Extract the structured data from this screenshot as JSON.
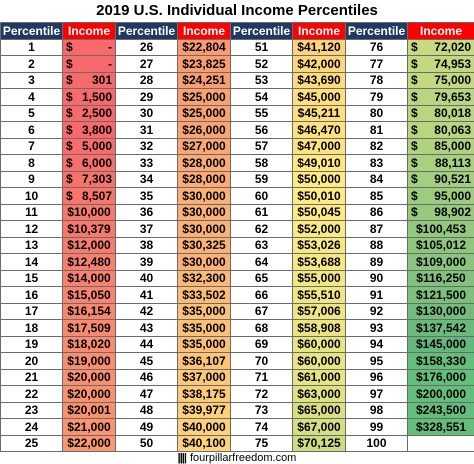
{
  "title": "2019 U.S. Individual Income Percentiles",
  "headers": {
    "percentile": "Percentile",
    "income": "Income"
  },
  "columns": [
    {
      "percentiles": [
        "1",
        "2",
        "3",
        "4",
        "5",
        "6",
        "7",
        "8",
        "9",
        "10",
        "11",
        "12",
        "13",
        "14",
        "15",
        "16",
        "17",
        "18",
        "19",
        "20",
        "21",
        "22",
        "23",
        "24",
        "25"
      ],
      "incomes": [
        "$ -",
        "$ -",
        "$ 301",
        "$ 1,500",
        "$ 2,500",
        "$ 3,800",
        "$ 5,000",
        "$ 6,000",
        "$ 7,303",
        "$ 8,507",
        "$10,000",
        "$10,379",
        "$12,000",
        "$12,480",
        "$14,000",
        "$15,050",
        "$16,154",
        "$17,509",
        "$18,020",
        "$19,000",
        "$20,000",
        "$20,000",
        "$20,001",
        "$21,000",
        "$22,000"
      ],
      "colors": [
        "#f8696b",
        "#f8696b",
        "#f8696b",
        "#f8696b",
        "#f8696b",
        "#f8696b",
        "#f86c6b",
        "#f86f6b",
        "#f8726c",
        "#f8756c",
        "#f8786c",
        "#f8796c",
        "#f87c6d",
        "#f87e6d",
        "#f8826d",
        "#f9846e",
        "#f9876e",
        "#f98a6e",
        "#f98b6f",
        "#f98e6f",
        "#f9916f",
        "#f9916f",
        "#f9916f",
        "#fa9470",
        "#fa9770"
      ]
    },
    {
      "percentiles": [
        "26",
        "27",
        "28",
        "29",
        "30",
        "31",
        "32",
        "33",
        "34",
        "35",
        "36",
        "37",
        "38",
        "39",
        "40",
        "41",
        "42",
        "43",
        "44",
        "45",
        "46",
        "47",
        "48",
        "49",
        "50"
      ],
      "incomes": [
        "$22,804",
        "$23,825",
        "$24,251",
        "$25,000",
        "$25,000",
        "$26,000",
        "$27,000",
        "$28,000",
        "$28,000",
        "$30,000",
        "$30,000",
        "$30,000",
        "$30,325",
        "$30,000",
        "$32,300",
        "$33,502",
        "$35,000",
        "$35,000",
        "$35,000",
        "$36,107",
        "$37,000",
        "$38,175",
        "$39,977",
        "$40,000",
        "$40,100"
      ],
      "colors": [
        "#fa9a71",
        "#fa9d71",
        "#fa9e71",
        "#faa172",
        "#faa172",
        "#fba472",
        "#fba773",
        "#fbab73",
        "#fbab73",
        "#fbb174",
        "#fbb174",
        "#fbb174",
        "#fbb274",
        "#fbb174",
        "#fcb875",
        "#fcbc76",
        "#fcc177",
        "#fcc177",
        "#fcc177",
        "#fdc477",
        "#fdc778",
        "#fdca78",
        "#fdd079",
        "#fdd079",
        "#fed17a"
      ]
    },
    {
      "percentiles": [
        "51",
        "52",
        "53",
        "54",
        "55",
        "56",
        "57",
        "58",
        "59",
        "60",
        "61",
        "62",
        "63",
        "64",
        "65",
        "66",
        "67",
        "68",
        "69",
        "70",
        "71",
        "72",
        "73",
        "74",
        "75"
      ],
      "incomes": [
        "$41,120",
        "$42,000",
        "$43,690",
        "$45,000",
        "$45,211",
        "$46,470",
        "$47,000",
        "$49,010",
        "$50,000",
        "$50,010",
        "$50,045",
        "$52,000",
        "$53,026",
        "$53,688",
        "$55,000",
        "$55,510",
        "$57,006",
        "$58,908",
        "$60,000",
        "$60,000",
        "$61,000",
        "$63,000",
        "$65,000",
        "$67,000",
        "$70,125"
      ],
      "colors": [
        "#fed47a",
        "#fed77b",
        "#fedb7c",
        "#fedf7d",
        "#fedf7d",
        "#fee27d",
        "#fee47e",
        "#ffe87f",
        "#ffeb84",
        "#ffeb84",
        "#ffeb84",
        "#fbea83",
        "#f8e983",
        "#f6e983",
        "#f2e883",
        "#f1e782",
        "#eee682",
        "#eae582",
        "#e8e482",
        "#e8e482",
        "#e5e382",
        "#e0e281",
        "#dae081",
        "#d5df81",
        "#cddc80"
      ]
    },
    {
      "percentiles": [
        "76",
        "77",
        "78",
        "79",
        "80",
        "81",
        "82",
        "83",
        "84",
        "85",
        "86",
        "87",
        "88",
        "89",
        "90",
        "91",
        "92",
        "93",
        "94",
        "95",
        "96",
        "97",
        "98",
        "99",
        "100"
      ],
      "incomes": [
        "$ 72,020",
        "$ 74,953",
        "$ 75,000",
        "$ 79,653",
        "$ 80,018",
        "$ 80,063",
        "$ 85,000",
        "$ 88,113",
        "$ 90,521",
        "$ 95,000",
        "$ 98,902",
        "$100,453",
        "$105,012",
        "$109,000",
        "$116,250",
        "$121,500",
        "$130,000",
        "$137,542",
        "$145,000",
        "$158,330",
        "$176,000",
        "$200,000",
        "$243,500",
        "$328,551",
        ""
      ],
      "colors": [
        "#c8da80",
        "#c2d980",
        "#c2d980",
        "#b8d67f",
        "#b8d67f",
        "#b8d67f",
        "#aed27e",
        "#a8d07e",
        "#a3cf7e",
        "#9ccc7d",
        "#96ca7d",
        "#93c97d",
        "#8ec77c",
        "#89c57c",
        "#81c27c",
        "#7bc07b",
        "#72bd7b",
        "#6abb7b",
        "#63b97b",
        "#63be7b",
        "#63be7b",
        "#63be7b",
        "#63be7b",
        "#63be7b",
        "#ffffff"
      ]
    }
  ],
  "footer": {
    "bars": "||||",
    "site": "fourpillarfreedom.com"
  }
}
